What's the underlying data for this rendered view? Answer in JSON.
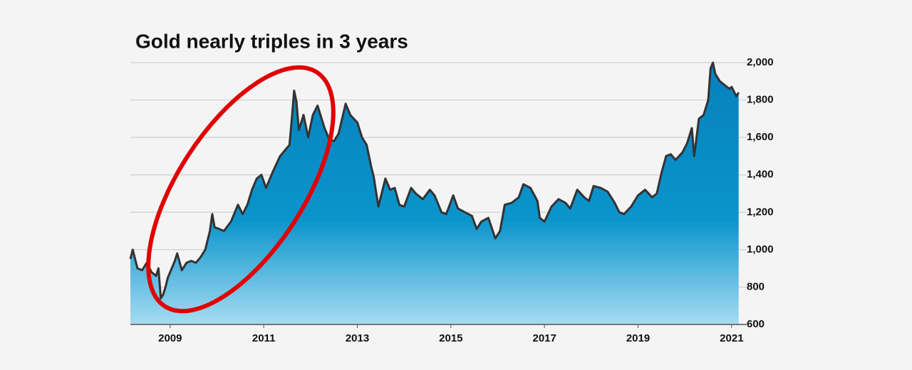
{
  "chart_data": {
    "type": "area",
    "title": "Gold nearly triples in 3 years",
    "x": [
      2008.15,
      2008.2,
      2008.3,
      2008.4,
      2008.5,
      2008.6,
      2008.7,
      2008.75,
      2008.8,
      2008.85,
      2008.9,
      2008.95,
      2009.0,
      2009.1,
      2009.15,
      2009.25,
      2009.35,
      2009.45,
      2009.55,
      2009.65,
      2009.75,
      2009.85,
      2009.9,
      2009.95,
      2010.05,
      2010.15,
      2010.3,
      2010.45,
      2010.55,
      2010.65,
      2010.75,
      2010.85,
      2010.95,
      2011.05,
      2011.2,
      2011.35,
      2011.45,
      2011.55,
      2011.6,
      2011.65,
      2011.7,
      2011.75,
      2011.85,
      2011.95,
      2012.05,
      2012.15,
      2012.3,
      2012.4,
      2012.5,
      2012.6,
      2012.75,
      2012.85,
      2013.0,
      2013.1,
      2013.2,
      2013.3,
      2013.35,
      2013.45,
      2013.5,
      2013.6,
      2013.7,
      2013.8,
      2013.9,
      2014.0,
      2014.15,
      2014.25,
      2014.4,
      2014.55,
      2014.65,
      2014.8,
      2014.9,
      2015.05,
      2015.15,
      2015.3,
      2015.45,
      2015.55,
      2015.65,
      2015.8,
      2015.95,
      2016.05,
      2016.15,
      2016.3,
      2016.45,
      2016.55,
      2016.7,
      2016.85,
      2016.9,
      2017.0,
      2017.15,
      2017.3,
      2017.45,
      2017.55,
      2017.7,
      2017.85,
      2017.95,
      2018.05,
      2018.2,
      2018.35,
      2018.5,
      2018.6,
      2018.7,
      2018.85,
      2019.0,
      2019.15,
      2019.3,
      2019.4,
      2019.5,
      2019.6,
      2019.7,
      2019.8,
      2019.95,
      2020.05,
      2020.15,
      2020.2,
      2020.3,
      2020.4,
      2020.5,
      2020.55,
      2020.6,
      2020.65,
      2020.75,
      2020.85,
      2020.95,
      2021.0,
      2021.1,
      2021.15
    ],
    "series": [
      {
        "name": "Gold",
        "color": "#333333",
        "values": [
          950,
          1000,
          900,
          890,
          930,
          880,
          860,
          900,
          740,
          760,
          800,
          850,
          880,
          940,
          980,
          890,
          930,
          940,
          930,
          960,
          1000,
          1100,
          1190,
          1120,
          1110,
          1100,
          1150,
          1240,
          1190,
          1240,
          1320,
          1380,
          1400,
          1330,
          1420,
          1500,
          1530,
          1560,
          1700,
          1850,
          1790,
          1640,
          1720,
          1600,
          1720,
          1770,
          1650,
          1590,
          1580,
          1620,
          1780,
          1720,
          1680,
          1600,
          1560,
          1440,
          1390,
          1230,
          1280,
          1380,
          1320,
          1330,
          1240,
          1230,
          1330,
          1300,
          1270,
          1320,
          1290,
          1200,
          1190,
          1290,
          1220,
          1200,
          1180,
          1110,
          1150,
          1170,
          1060,
          1100,
          1240,
          1250,
          1280,
          1350,
          1330,
          1260,
          1170,
          1150,
          1230,
          1270,
          1250,
          1220,
          1320,
          1280,
          1260,
          1340,
          1330,
          1310,
          1250,
          1200,
          1190,
          1230,
          1290,
          1320,
          1280,
          1300,
          1410,
          1500,
          1510,
          1480,
          1520,
          1570,
          1650,
          1500,
          1700,
          1720,
          1800,
          1970,
          2000,
          1940,
          1900,
          1880,
          1860,
          1870,
          1820,
          1840
        ]
      }
    ],
    "xlim": [
      2008.15,
      2021.2
    ],
    "xticks": [
      2009,
      2011,
      2013,
      2015,
      2017,
      2019,
      2021
    ],
    "ylim": [
      600,
      2000
    ],
    "yticks": [
      600,
      800,
      {
        "value": 1000,
        "label": "1,000"
      },
      {
        "value": 1200,
        "label": "1,200"
      },
      {
        "value": 1400,
        "label": "1,400"
      },
      {
        "value": 1600,
        "label": "1,600"
      },
      {
        "value": 1800,
        "label": "1,800"
      },
      {
        "value": 2000,
        "label": "2,000"
      }
    ],
    "grid": true
  }
}
